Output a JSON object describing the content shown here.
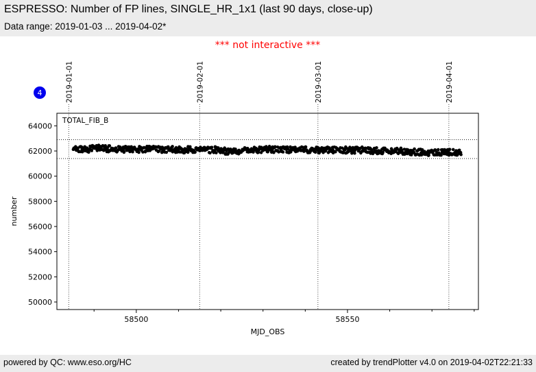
{
  "page": {
    "band_color": "#ececec",
    "background": "#ffffff"
  },
  "header": {
    "title": "ESPRESSO: Number of FP lines, SINGLE_HR_1x1 (last 90 days, close-up)",
    "subtitle": "Data range: 2019-01-03 ... 2019-04-02*"
  },
  "notice": {
    "text": "*** not interactive ***",
    "color": "#ff0000"
  },
  "badge": {
    "label": "4",
    "color": "#0000ee"
  },
  "footer": {
    "left": "powered by QC: www.eso.org/HC",
    "right": "created by trendPlotter v4.0 on 2019-04-02T22:21:33"
  },
  "chart_data": {
    "type": "scatter",
    "series_label": "TOTAL_FIB_B",
    "xlabel": "MJD_OBS",
    "ylabel": "number",
    "xlim": [
      58481.2,
      58581.0
    ],
    "ylim": [
      49400,
      65000
    ],
    "x_major_ticks": [
      58500,
      58550
    ],
    "x_minor_ticks": [
      58490,
      58510,
      58520,
      58530,
      58540,
      58560,
      58570,
      58580
    ],
    "y_ticks": [
      50000,
      52000,
      54000,
      56000,
      58000,
      60000,
      62000,
      64000
    ],
    "date_gridlines": [
      {
        "label": "2019-01-01",
        "mjd": 58484
      },
      {
        "label": "2019-02-01",
        "mjd": 58515
      },
      {
        "label": "2019-03-01",
        "mjd": 58543
      },
      {
        "label": "2019-04-01",
        "mjd": 58574
      }
    ],
    "thresholds": [
      62900,
      61400
    ],
    "marker_color": "#000000",
    "marker_radius": 2.3,
    "points_per_day": 8,
    "jitter": 250,
    "grid": "dotted",
    "legend_position": "inside-top-left",
    "daily_means": [
      [
        58485,
        62150
      ],
      [
        58486,
        62180
      ],
      [
        58487,
        62160
      ],
      [
        58488,
        62150
      ],
      [
        58489,
        62190
      ],
      [
        58490,
        62230
      ],
      [
        58491,
        62260
      ],
      [
        58492,
        62230
      ],
      [
        58493,
        62170
      ],
      [
        58494,
        62130
      ],
      [
        58495,
        62150
      ],
      [
        58496,
        62140
      ],
      [
        58497,
        62120
      ],
      [
        58498,
        62150
      ],
      [
        58499,
        62160
      ],
      [
        58500,
        62140
      ],
      [
        58501,
        62120
      ],
      [
        58502,
        62130
      ],
      [
        58503,
        62150
      ],
      [
        58504,
        62140
      ],
      [
        58505,
        62120
      ],
      [
        58506,
        62100
      ],
      [
        58507,
        62130
      ],
      [
        58508,
        62150
      ],
      [
        58509,
        62120
      ],
      [
        58510,
        62100
      ],
      [
        58511,
        62080
      ],
      [
        58512,
        62100
      ],
      [
        58513,
        62120
      ],
      [
        58514,
        62100
      ],
      [
        58515,
        62080
      ],
      [
        58516,
        62060
      ],
      [
        58517,
        62080
      ],
      [
        58518,
        62100
      ],
      [
        58519,
        62080
      ],
      [
        58520,
        62040
      ],
      [
        58521,
        62000
      ],
      [
        58522,
        61970
      ],
      [
        58523,
        61950
      ],
      [
        58524,
        62010
      ],
      [
        58525,
        62060
      ],
      [
        58526,
        62100
      ],
      [
        58527,
        62120
      ],
      [
        58528,
        62100
      ],
      [
        58529,
        62080
      ],
      [
        58530,
        62100
      ],
      [
        58531,
        62120
      ],
      [
        58532,
        62100
      ],
      [
        58533,
        62080
      ],
      [
        58534,
        62100
      ],
      [
        58535,
        62120
      ],
      [
        58536,
        62100
      ],
      [
        58537,
        62080
      ],
      [
        58538,
        62060
      ],
      [
        58539,
        62080
      ],
      [
        58540,
        62100
      ],
      [
        58541,
        62080
      ],
      [
        58542,
        62060
      ],
      [
        58543,
        62080
      ],
      [
        58544,
        62100
      ],
      [
        58545,
        62080
      ],
      [
        58546,
        62060
      ],
      [
        58547,
        62080
      ],
      [
        58548,
        62100
      ],
      [
        58549,
        62080
      ],
      [
        58550,
        62060
      ],
      [
        58551,
        62040
      ],
      [
        58552,
        62060
      ],
      [
        58553,
        62080
      ],
      [
        58554,
        62060
      ],
      [
        58555,
        62040
      ],
      [
        58556,
        62020
      ],
      [
        58557,
        62000
      ],
      [
        58558,
        62020
      ],
      [
        58559,
        62040
      ],
      [
        58560,
        62020
      ],
      [
        58561,
        62000
      ],
      [
        58562,
        61980
      ],
      [
        58563,
        61960
      ],
      [
        58564,
        61940
      ],
      [
        58565,
        61920
      ],
      [
        58566,
        61900
      ],
      [
        58567,
        61890
      ],
      [
        58568,
        61880
      ],
      [
        58569,
        61870
      ],
      [
        58570,
        61860
      ],
      [
        58571,
        61870
      ],
      [
        58572,
        61880
      ],
      [
        58573,
        61890
      ],
      [
        58574,
        61900
      ],
      [
        58575,
        61880
      ],
      [
        58576,
        61900
      ]
    ]
  }
}
